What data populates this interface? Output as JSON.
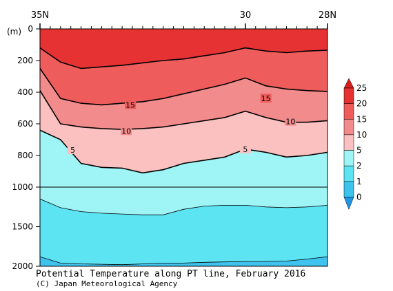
{
  "chart_data": {
    "type": "heatmap",
    "title": "Potential Temperature along PT line, February 2016",
    "credit": "(C) Japan Meteorological Agency",
    "x_axis": {
      "direction": "35N to 28N (left to right)",
      "range": [
        35,
        28
      ],
      "tick_labels": [
        "35N",
        "30",
        "28N"
      ],
      "tick_values": [
        35,
        30,
        28
      ]
    },
    "y_axis": {
      "unit_label": "(m)",
      "range": [
        0,
        2000
      ],
      "reversed": true,
      "scale_break_at": 1000,
      "tick_labels": [
        "0",
        "200",
        "400",
        "600",
        "800",
        "1000",
        "1500",
        "2000"
      ],
      "tick_values": [
        0,
        200,
        400,
        600,
        800,
        1000,
        1500,
        2000
      ]
    },
    "colorbar": {
      "levels": [
        "0",
        "1",
        "2",
        "5",
        "10",
        "15",
        "20",
        "25"
      ],
      "bins": [
        {
          "range": "<0",
          "color": "#1e96e6"
        },
        {
          "range": "0-1",
          "color": "#3ec3ef"
        },
        {
          "range": "1-2",
          "color": "#5de4f3"
        },
        {
          "range": "2-5",
          "color": "#9ff4f6"
        },
        {
          "range": "5-10",
          "color": "#fbc1c1"
        },
        {
          "range": "10-15",
          "color": "#f28b8b"
        },
        {
          "range": "15-20",
          "color": "#ee5c5c"
        },
        {
          "range": "20-25",
          "color": "#e63232"
        },
        {
          "range": ">25",
          "color": "#d81e1e"
        }
      ]
    },
    "isotherm_depths_m": {
      "lat": [
        35,
        34.5,
        34,
        33.5,
        33,
        32.5,
        32,
        31.5,
        31,
        30.5,
        30,
        29.5,
        29,
        28.5,
        28
      ],
      "t20": [
        120,
        210,
        250,
        240,
        230,
        215,
        200,
        190,
        170,
        150,
        120,
        140,
        150,
        140,
        135
      ],
      "t15": [
        250,
        440,
        470,
        480,
        470,
        460,
        440,
        410,
        380,
        350,
        310,
        360,
        380,
        390,
        395
      ],
      "t10": [
        390,
        600,
        620,
        630,
        635,
        630,
        620,
        600,
        580,
        560,
        520,
        560,
        590,
        590,
        580
      ],
      "t5": [
        640,
        700,
        850,
        875,
        880,
        910,
        890,
        850,
        830,
        810,
        760,
        780,
        810,
        800,
        780
      ],
      "t2": [
        1150,
        1260,
        1310,
        1330,
        1340,
        1350,
        1350,
        1280,
        1240,
        1230,
        1230,
        1250,
        1260,
        1250,
        1230
      ],
      "t1": [
        1880,
        1960,
        1970,
        1975,
        1980,
        1970,
        1960,
        1960,
        1950,
        1945,
        1940,
        1940,
        1935,
        1910,
        1880
      ]
    },
    "contour_labels": [
      {
        "text": "15",
        "lat": 32.8,
        "depth": 480
      },
      {
        "text": "15",
        "lat": 29.5,
        "depth": 440
      },
      {
        "text": "10",
        "lat": 32.9,
        "depth": 645
      },
      {
        "text": "10",
        "lat": 28.9,
        "depth": 585
      },
      {
        "text": "5",
        "lat": 34.2,
        "depth": 765
      },
      {
        "text": "5",
        "lat": 30.0,
        "depth": 760
      }
    ]
  }
}
